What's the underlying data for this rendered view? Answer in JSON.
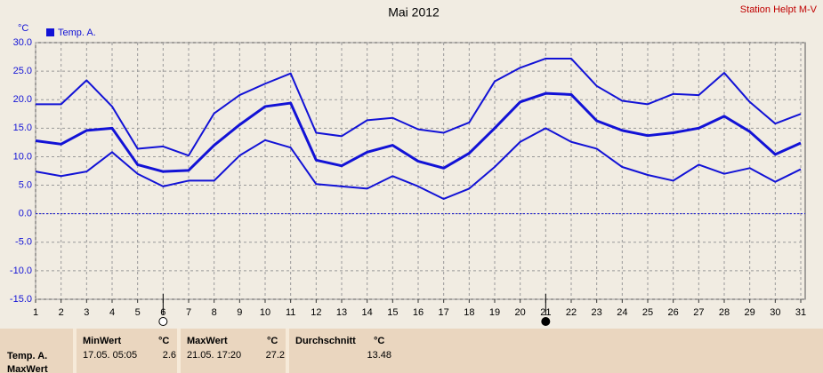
{
  "chart_data": {
    "type": "line",
    "title": "Mai 2012",
    "station": "Station Helpt M-V",
    "y_unit": "°C",
    "x": [
      1,
      2,
      3,
      4,
      5,
      6,
      7,
      8,
      9,
      10,
      11,
      12,
      13,
      14,
      15,
      16,
      17,
      18,
      19,
      20,
      21,
      22,
      23,
      24,
      25,
      26,
      27,
      28,
      29,
      30,
      31
    ],
    "series": [
      {
        "color": "#1212d6",
        "width": 2,
        "values": [
          19.2,
          19.2,
          23.4,
          18.8,
          11.4,
          11.8,
          10.2,
          17.6,
          20.8,
          22.8,
          24.6,
          14.2,
          13.6,
          16.4,
          16.8,
          14.8,
          14.2,
          16.0,
          23.2,
          25.6,
          27.2,
          27.2,
          22.4,
          19.8,
          19.2,
          21.0,
          20.8,
          24.7,
          19.6,
          15.8,
          17.5
        ]
      },
      {
        "name": "Temp. A.",
        "color": "#1212d6",
        "width": 3,
        "values": [
          12.8,
          12.2,
          14.6,
          15.0,
          8.6,
          7.4,
          7.6,
          12.0,
          15.6,
          18.8,
          19.4,
          9.4,
          8.4,
          10.8,
          12.0,
          9.2,
          8.0,
          10.6,
          15.0,
          19.6,
          21.1,
          20.9,
          16.3,
          14.6,
          13.7,
          14.2,
          15.0,
          17.1,
          14.4,
          10.4,
          12.4
        ]
      },
      {
        "color": "#1212d6",
        "width": 2,
        "values": [
          7.4,
          6.6,
          7.4,
          10.8,
          7.0,
          4.8,
          5.8,
          5.8,
          10.2,
          12.9,
          11.6,
          5.2,
          4.8,
          4.4,
          6.6,
          4.8,
          2.6,
          4.4,
          8.2,
          12.6,
          15.0,
          12.6,
          11.4,
          8.2,
          6.8,
          5.8,
          8.6,
          7.0,
          8.0,
          5.6,
          7.8
        ]
      }
    ],
    "xlim": [
      1,
      31
    ],
    "xticks": [
      1,
      2,
      3,
      4,
      5,
      6,
      7,
      8,
      9,
      10,
      11,
      12,
      13,
      14,
      15,
      16,
      17,
      18,
      19,
      20,
      21,
      22,
      23,
      24,
      25,
      26,
      27,
      28,
      29,
      30,
      31
    ],
    "ylim": [
      -15,
      30
    ],
    "yticks": [
      {
        "value": -15,
        "label": "-15.0"
      },
      {
        "value": -10,
        "label": "-10.0"
      },
      {
        "value": -5,
        "label": "-5.0"
      },
      {
        "value": 0,
        "label": "0.0"
      },
      {
        "value": 5,
        "label": "5.0"
      },
      {
        "value": 10,
        "label": "10.0"
      },
      {
        "value": 15,
        "label": "15.0"
      },
      {
        "value": 20,
        "label": "20.0"
      },
      {
        "value": 25,
        "label": "25.0"
      },
      {
        "value": 30,
        "label": "30.0"
      }
    ],
    "grid": true,
    "hline": 0,
    "moon_phases": [
      {
        "x": 6,
        "filled": false
      },
      {
        "x": 21,
        "filled": true
      }
    ]
  },
  "table": {
    "row_labels": [
      "Temp. A.",
      "MaxWert"
    ],
    "columns": [
      {
        "header": "MinWert",
        "unit": "°C",
        "time": "17.05. 05:05",
        "value": 2.6
      },
      {
        "header": "MaxWert",
        "unit": "°C",
        "time": "21.05. 17:20",
        "value": 27.2
      },
      {
        "header": "Durchschnitt",
        "unit": "°C",
        "value": 13.48
      }
    ]
  }
}
